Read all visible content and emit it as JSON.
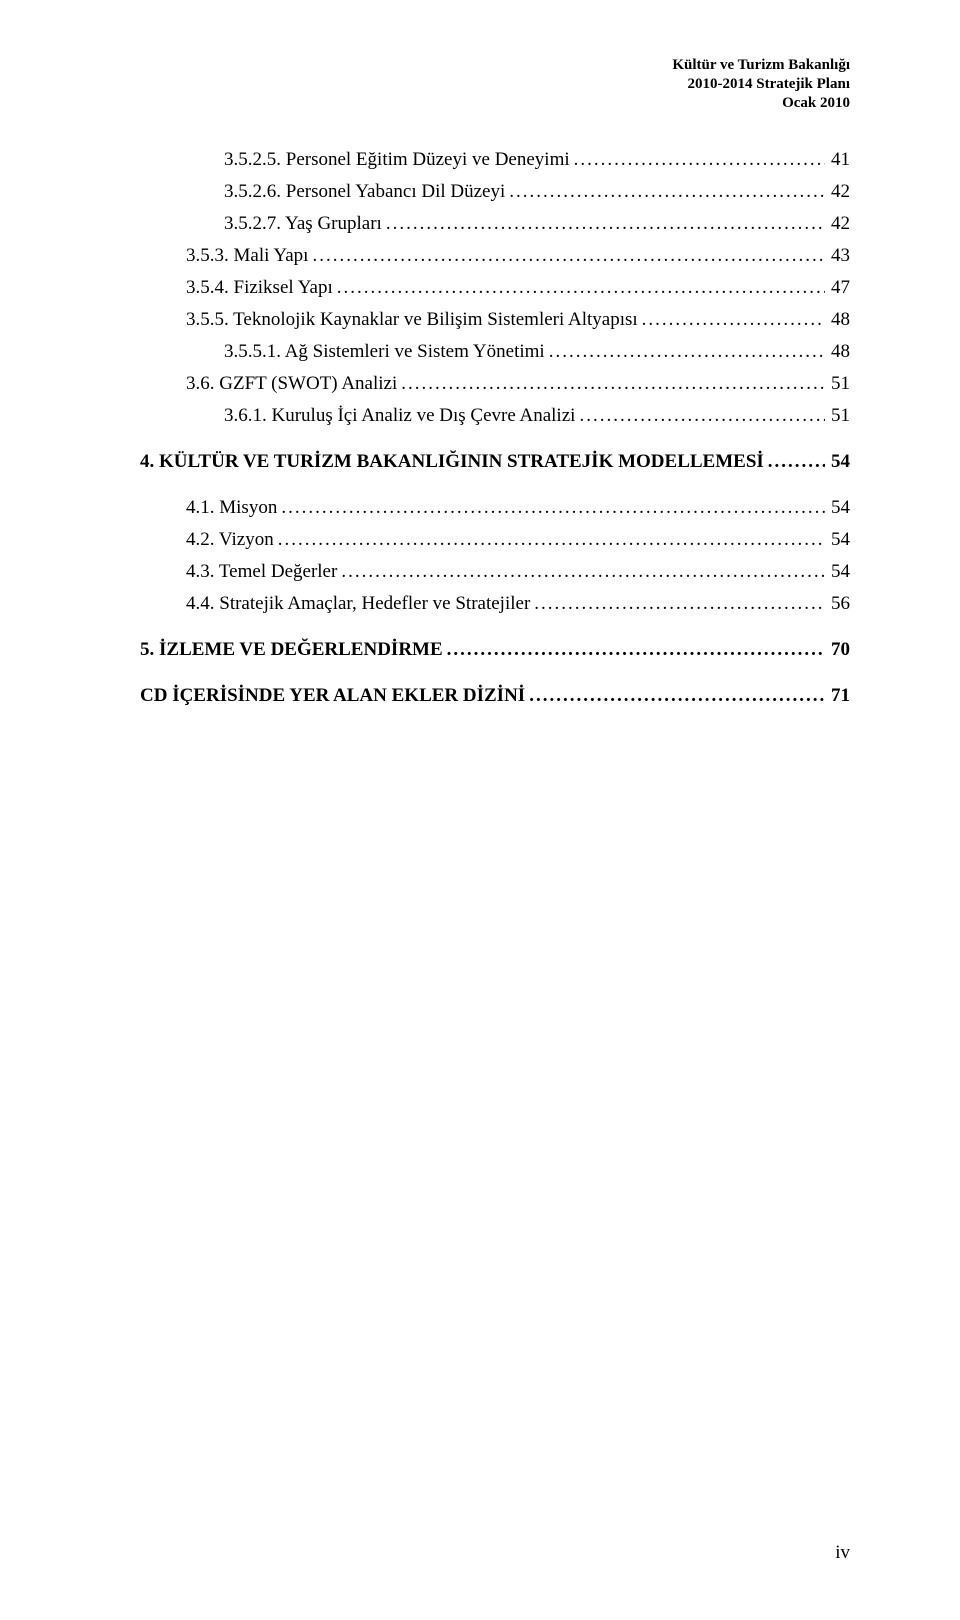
{
  "header": {
    "line1": "Kültür ve Turizm Bakanlığı",
    "line2": "2010-2014 Stratejik Planı",
    "line3": "Ocak 2010"
  },
  "toc": [
    {
      "indent": 2,
      "label": "3.5.2.5. Personel Eğitim Düzeyi ve Deneyimi",
      "page": "41",
      "bold": false
    },
    {
      "indent": 2,
      "label": "3.5.2.6. Personel Yabancı Dil Düzeyi",
      "page": "42",
      "bold": false
    },
    {
      "indent": 2,
      "label": "3.5.2.7. Yaş Grupları",
      "page": "42",
      "bold": false
    },
    {
      "indent": 1,
      "label": "3.5.3. Mali Yapı",
      "page": "43",
      "bold": false
    },
    {
      "indent": 1,
      "label": "3.5.4. Fiziksel Yapı",
      "page": "47",
      "bold": false
    },
    {
      "indent": 1,
      "label": "3.5.5. Teknolojik Kaynaklar ve Bilişim Sistemleri Altyapısı",
      "page": "48",
      "bold": false
    },
    {
      "indent": 2,
      "label": "3.5.5.1. Ağ Sistemleri ve Sistem Yönetimi",
      "page": "48",
      "bold": false
    },
    {
      "indent": 1,
      "label": "3.6. GZFT (SWOT) Analizi",
      "page": "51",
      "bold": false
    },
    {
      "indent": 2,
      "label": "3.6.1. Kuruluş İçi Analiz ve Dış Çevre Analizi",
      "page": "51",
      "bold": false
    },
    {
      "indent": 0,
      "label": "4. KÜLTÜR VE TURİZM BAKANLIĞININ STRATEJİK MODELLEMESİ",
      "page": "54",
      "bold": true,
      "gapBefore": "med",
      "gapAfter": "med"
    },
    {
      "indent": 1,
      "label": "4.1. Misyon",
      "page": "54",
      "bold": false
    },
    {
      "indent": 1,
      "label": "4.2. Vizyon",
      "page": "54",
      "bold": false
    },
    {
      "indent": 1,
      "label": "4.3. Temel Değerler",
      "page": "54",
      "bold": false
    },
    {
      "indent": 1,
      "label": "4.4. Stratejik Amaçlar, Hedefler ve Stratejiler",
      "page": "56",
      "bold": false
    },
    {
      "indent": 0,
      "label": "5. İZLEME VE DEĞERLENDİRME",
      "page": "70",
      "bold": true,
      "gapBefore": "med",
      "gapAfter": "med"
    },
    {
      "indent": 0,
      "label": "CD İÇERİSİNDE YER ALAN EKLER DİZİNİ",
      "page": "71",
      "bold": true
    }
  ],
  "pageNumber": "iv",
  "colors": {
    "text": "#000000",
    "background": "#ffffff"
  },
  "typography": {
    "body_fontsize_pt": 14,
    "header_fontsize_pt": 11,
    "font_family": "Times New Roman"
  }
}
